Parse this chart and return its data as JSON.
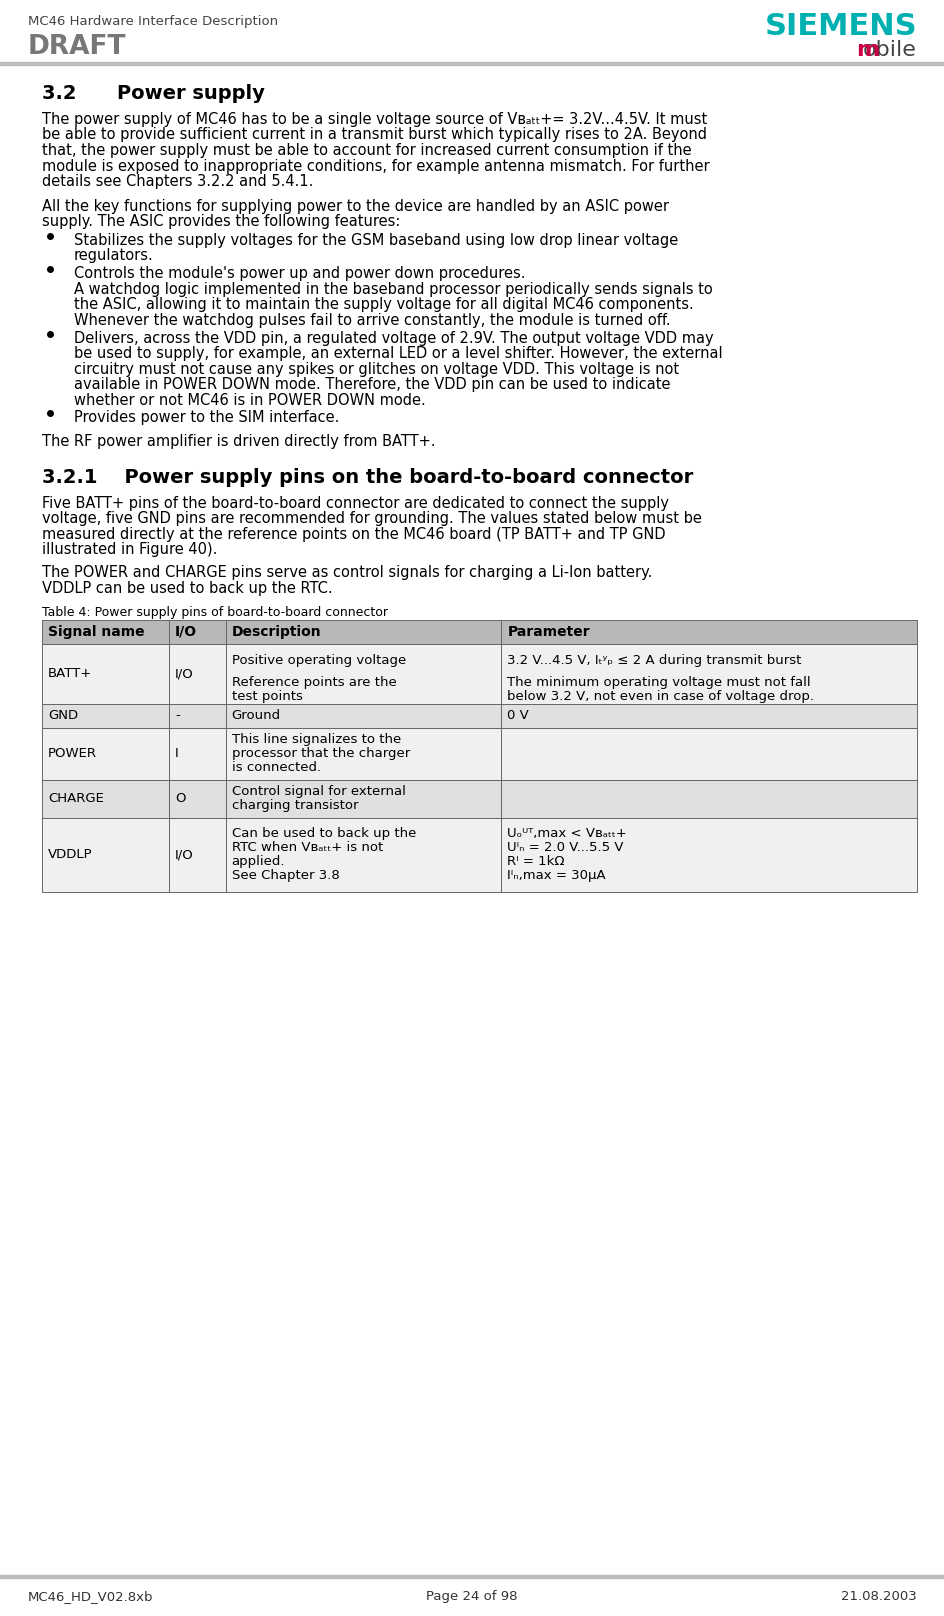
{
  "header_left_line1": "MC46 Hardware Interface Description",
  "header_left_line2": "DRAFT",
  "header_right_line1": "SIEMENS",
  "header_right_line2_m": "m",
  "header_right_line2_rest": "obile",
  "footer_left": "MC46_HD_V02.8xb",
  "footer_center": "Page 24 of 98",
  "footer_right": "21.08.2003",
  "section_32_title": "3.2      Power supply",
  "section_321_title": "3.2.1    Power supply pins on the board-to-board connector",
  "table_caption": "Table 4: Power supply pins of board-to-board connector",
  "table_header": [
    "Signal name",
    "I/O",
    "Description",
    "Parameter"
  ],
  "siemens_color": "#00b0b0",
  "m_color": "#cc0044",
  "header_line_color": "#bbbbbb",
  "table_header_bg": "#b8b8b8",
  "table_row_bg1": "#f0f0f0",
  "table_row_bg2": "#e0e0e0",
  "table_border_color": "#666666"
}
